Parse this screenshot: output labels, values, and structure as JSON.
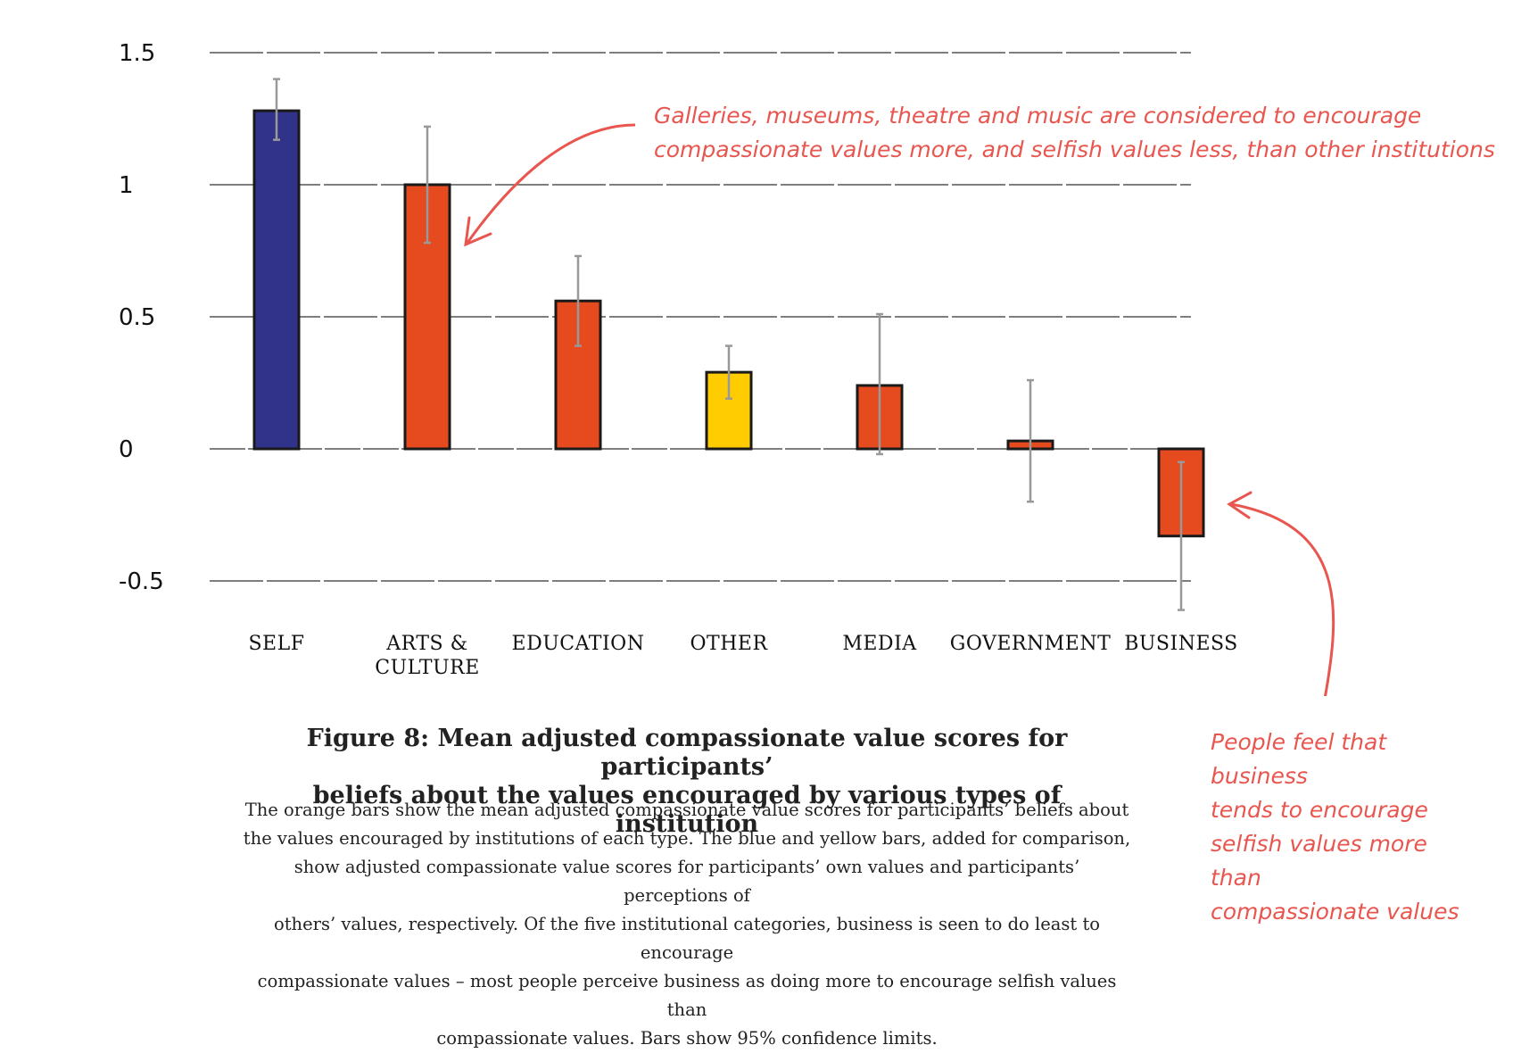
{
  "chart_data": {
    "type": "bar",
    "categories": [
      "SELF",
      "ARTS & CULTURE",
      "EDUCATION",
      "OTHER",
      "MEDIA",
      "GOVERNMENT",
      "BUSINESS"
    ],
    "category_lines": [
      [
        "SELF"
      ],
      [
        "ARTS &",
        "CULTURE"
      ],
      [
        "EDUCATION"
      ],
      [
        "OTHER"
      ],
      [
        "MEDIA"
      ],
      [
        "GOVERNMENT"
      ],
      [
        "BUSINESS"
      ]
    ],
    "values": [
      1.28,
      1.0,
      0.56,
      0.29,
      0.24,
      0.03,
      -0.33
    ],
    "ci_low": [
      1.17,
      0.78,
      0.39,
      0.19,
      -0.02,
      -0.2,
      -0.61
    ],
    "ci_high": [
      1.4,
      1.22,
      0.73,
      0.39,
      0.51,
      0.26,
      -0.05
    ],
    "bar_colors": [
      "#303389",
      "#e64b1f",
      "#e64b1f",
      "#fecc00",
      "#e64b1f",
      "#e64b1f",
      "#e64b1f"
    ],
    "ylim": [
      -0.5,
      1.5
    ],
    "yticks": [
      1.5,
      1,
      0.5,
      0,
      -0.5
    ],
    "ytick_labels": [
      "1.5",
      "1",
      "0.5",
      "0",
      "-0.5"
    ],
    "grid": true,
    "xlabel": "",
    "ylabel": "",
    "title": "Figure 8: Mean adjusted compassionate value scores for participants’ beliefs about the values encouraged by various types of institution"
  },
  "annotations": {
    "top_line1": "Galleries, museums, theatre and music are considered to encourage",
    "top_line2": "compassionate values more, and selfish values less, than other institutions",
    "side_lines": [
      "People feel that business",
      "tends to encourage",
      "selfish values more than",
      "compassionate values"
    ]
  },
  "caption": {
    "title_line1": "Figure 8: Mean adjusted compassionate value scores for participants’",
    "title_line2": "beliefs about the values encouraged by various types of institution",
    "body_lines": [
      "The orange bars show the mean adjusted compassionate value scores for participants’ beliefs about",
      "the values encouraged by institutions of each type. The blue and yellow bars, added for comparison,",
      "show adjusted compassionate value scores for participants’ own values and participants’ perceptions of",
      "others’ values, respectively. Of the five institutional categories, business is seen to do least to encourage",
      "compassionate values – most people perceive business as doing more to encourage selfish values than",
      "compassionate values. Bars show 95% confidence limits."
    ]
  },
  "colors": {
    "accent": "#e8564f",
    "grid": "#555555",
    "error_bar": "#999999"
  }
}
